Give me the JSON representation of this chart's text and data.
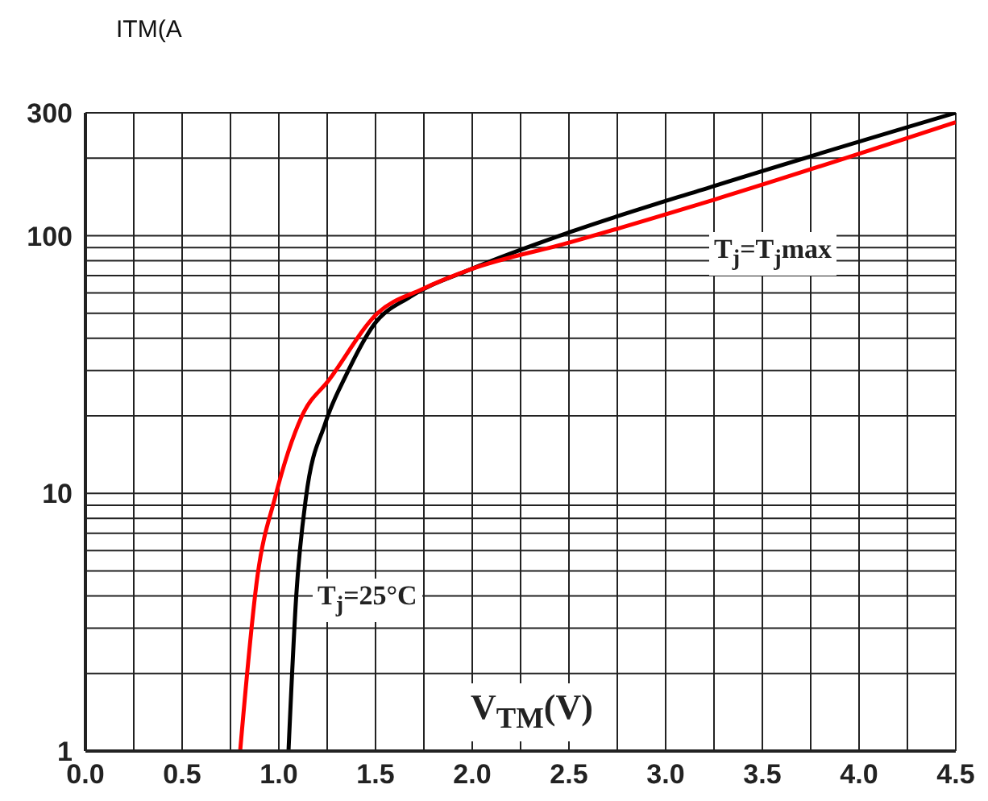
{
  "chart_data": {
    "type": "line",
    "xlabel": "V$_{TM}$(V)",
    "ylabel": "ITM(A",
    "log": "y",
    "grid": true,
    "marker": "none",
    "line_style": "solid",
    "xlim": [
      0,
      4.5
    ],
    "xticks": [
      {
        "value": 0,
        "label": "0.0"
      },
      {
        "value": 0.25,
        "label": null
      },
      {
        "value": 0.5,
        "label": "0.5"
      },
      {
        "value": 0.75,
        "label": null
      },
      {
        "value": 1,
        "label": "1.0"
      },
      {
        "value": 1.25,
        "label": null
      },
      {
        "value": 1.5,
        "label": "1.5"
      },
      {
        "value": 1.75,
        "label": null
      },
      {
        "value": 2,
        "label": "2.0"
      },
      {
        "value": 2.25,
        "label": null
      },
      {
        "value": 2.5,
        "label": "2.5"
      },
      {
        "value": 2.75,
        "label": null
      },
      {
        "value": 3,
        "label": "3.0"
      },
      {
        "value": 3.25,
        "label": null
      },
      {
        "value": 3.5,
        "label": "3.5"
      },
      {
        "value": 3.75,
        "label": null
      },
      {
        "value": 4,
        "label": "4.0"
      },
      {
        "value": 4.25,
        "label": null
      },
      {
        "value": 4.5,
        "label": "4.5"
      }
    ],
    "ylim": [
      1,
      300
    ],
    "yticks": [
      1,
      {
        "value": 2,
        "label": null
      },
      {
        "value": 3,
        "label": null
      },
      {
        "value": 4,
        "label": null
      },
      {
        "value": 5,
        "label": null
      },
      {
        "value": 6,
        "label": null
      },
      {
        "value": 7,
        "label": null
      },
      {
        "value": 8,
        "label": null
      },
      {
        "value": 9,
        "label": null
      },
      10,
      {
        "value": 20,
        "label": null
      },
      {
        "value": 30,
        "label": null
      },
      {
        "value": 40,
        "label": null
      },
      {
        "value": 50,
        "label": null
      },
      {
        "value": 60,
        "label": null
      },
      {
        "value": 70,
        "label": null
      },
      {
        "value": 80,
        "label": null
      },
      {
        "value": 90,
        "label": null
      },
      100,
      {
        "value": 200,
        "label": null
      },
      300
    ],
    "series": [
      {
        "color": "#000000",
        "x": [
          1.05,
          1.09,
          1.14,
          1.24,
          1.35,
          1.49,
          1.68,
          1.99,
          2.5,
          3.25,
          4.5
        ],
        "values": [
          1,
          4,
          9.6,
          18.7,
          29,
          45,
          58,
          74,
          103,
          156,
          300
        ]
      },
      {
        "color": "#ff0000",
        "x": [
          0.8,
          0.89,
          0.98,
          1.12,
          1.26,
          1.51,
          1.74,
          1.99,
          2.5,
          3.25,
          4.5
        ],
        "values": [
          1,
          4.8,
          9.6,
          20,
          27.6,
          50,
          62,
          74,
          94,
          138,
          276
        ]
      }
    ],
    "annotations": [
      "T$_{j}$=25°C",
      "T$_{j}$=T$_{j}$max"
    ]
  }
}
